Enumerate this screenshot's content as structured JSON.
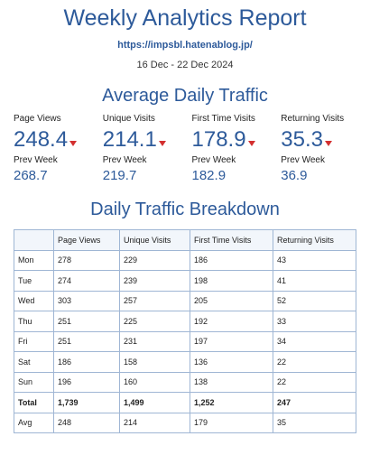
{
  "header": {
    "title": "Weekly Analytics Report",
    "url": "https://impsbl.hatenablog.jp/",
    "date_range": "16 Dec - 22 Dec 2024"
  },
  "avg_section": {
    "title": "Average Daily Traffic",
    "prev_label": "Prev Week",
    "down_indicator_color": "#d32f2f",
    "stats": [
      {
        "label": "Page Views",
        "value": "248.4",
        "trend": "down",
        "prev": "268.7"
      },
      {
        "label": "Unique Visits",
        "value": "214.1",
        "trend": "down",
        "prev": "219.7"
      },
      {
        "label": "First Time Visits",
        "value": "178.9",
        "trend": "down",
        "prev": "182.9"
      },
      {
        "label": "Returning Visits",
        "value": "35.3",
        "trend": "down",
        "prev": "36.9"
      }
    ]
  },
  "breakdown": {
    "title": "Daily Traffic Breakdown",
    "columns": [
      "",
      "Page Views",
      "Unique Visits",
      "First Time Visits",
      "Returning Visits"
    ],
    "rows": [
      [
        "Mon",
        "278",
        "229",
        "186",
        "43"
      ],
      [
        "Tue",
        "274",
        "239",
        "198",
        "41"
      ],
      [
        "Wed",
        "303",
        "257",
        "205",
        "52"
      ],
      [
        "Thu",
        "251",
        "225",
        "192",
        "33"
      ],
      [
        "Fri",
        "251",
        "231",
        "197",
        "34"
      ],
      [
        "Sat",
        "186",
        "158",
        "136",
        "22"
      ],
      [
        "Sun",
        "196",
        "160",
        "138",
        "22"
      ],
      [
        "Total",
        "1,739",
        "1,499",
        "1,252",
        "247"
      ],
      [
        "Avg",
        "248",
        "214",
        "179",
        "35"
      ]
    ]
  },
  "colors": {
    "accent": "#2d5a9a",
    "table_border": "#9fb6d4"
  }
}
